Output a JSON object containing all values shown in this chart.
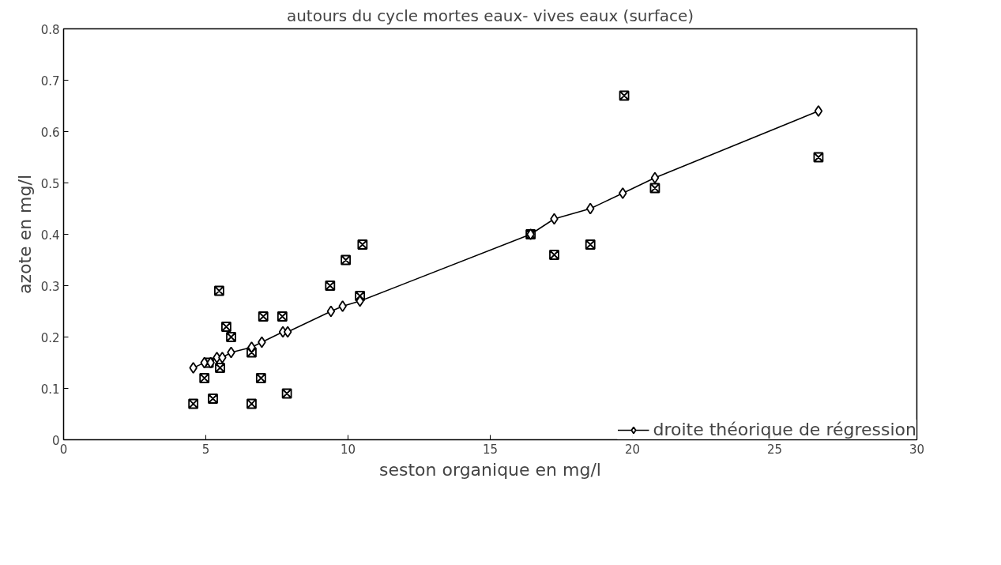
{
  "chart_data": {
    "type": "scatter",
    "title": "autours du cycle mortes eaux- vives eaux (surface)",
    "xlabel": "seston organique en mg/l",
    "ylabel": "azote en mg/l",
    "xlim": [
      0,
      30
    ],
    "xticks": [
      0,
      5,
      10,
      15,
      20,
      25,
      30
    ],
    "ylim": [
      0,
      0.8
    ],
    "yticks": [
      0,
      0.1,
      0.2,
      0.3,
      0.4,
      0.5,
      0.6,
      0.7,
      0.8
    ],
    "grid": false,
    "legend": "bottom right",
    "series": [
      {
        "color": "#000000",
        "marker": "cross",
        "x": [
          4.56,
          4.95,
          5.1,
          5.25,
          5.5,
          5.47,
          5.72,
          5.89,
          6.61,
          6.61,
          6.94,
          7.02,
          7.69,
          7.85,
          9.37,
          9.92,
          10.42,
          10.51,
          16.42,
          17.25,
          18.52,
          19.71,
          20.79,
          26.54
        ],
        "values": [
          0.07,
          0.12,
          0.15,
          0.08,
          0.14,
          0.29,
          0.22,
          0.2,
          0.07,
          0.17,
          0.12,
          0.24,
          0.24,
          0.09,
          0.3,
          0.35,
          0.28,
          0.38,
          0.4,
          0.36,
          0.38,
          0.67,
          0.49,
          0.55
        ]
      },
      {
        "type": "line",
        "name": "droite théorique de régression",
        "color": "#000000",
        "marker": "diamond",
        "line_style": "solid",
        "x": [
          4.56,
          4.95,
          5.17,
          5.39,
          5.58,
          5.89,
          6.61,
          6.97,
          7.71,
          7.88,
          9.4,
          9.81,
          10.42,
          16.42,
          17.25,
          18.52,
          19.66,
          20.79,
          26.54
        ],
        "values": [
          0.14,
          0.15,
          0.15,
          0.16,
          0.16,
          0.17,
          0.18,
          0.19,
          0.21,
          0.21,
          0.25,
          0.26,
          0.27,
          0.4,
          0.43,
          0.45,
          0.48,
          0.51,
          0.64
        ]
      }
    ]
  }
}
